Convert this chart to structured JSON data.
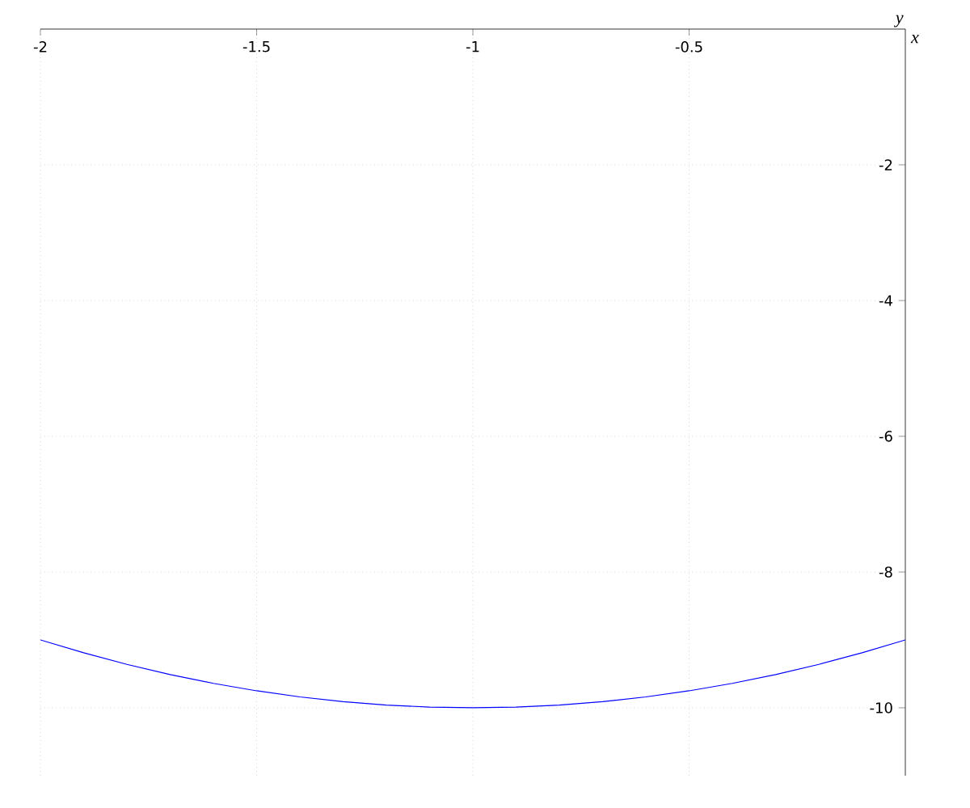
{
  "chart_data": {
    "type": "line",
    "xlabel": "x",
    "ylabel": "y",
    "x": [
      -2,
      -1.9,
      -1.8,
      -1.7,
      -1.6,
      -1.5,
      -1.4,
      -1.3,
      -1.2,
      -1.1,
      -1,
      -0.9,
      -0.8,
      -0.7,
      -0.6,
      -0.5,
      -0.4,
      -0.3,
      -0.2,
      -0.1,
      0
    ],
    "series": [
      {
        "color": "#0000ff",
        "values": [
          -9,
          -9.19,
          -9.36,
          -9.51,
          -9.64,
          -9.75,
          -9.84,
          -9.91,
          -9.96,
          -9.99,
          -10,
          -9.99,
          -9.96,
          -9.91,
          -9.84,
          -9.75,
          -9.64,
          -9.51,
          -9.36,
          -9.19,
          -9
        ]
      }
    ],
    "xlim": [
      -2,
      0
    ],
    "ylim": [
      -11,
      0
    ],
    "xticks": [
      -2,
      -1.5,
      -1,
      -0.5
    ],
    "yticks": [
      -2,
      -4,
      -6,
      -8,
      -10
    ],
    "grid": true
  }
}
